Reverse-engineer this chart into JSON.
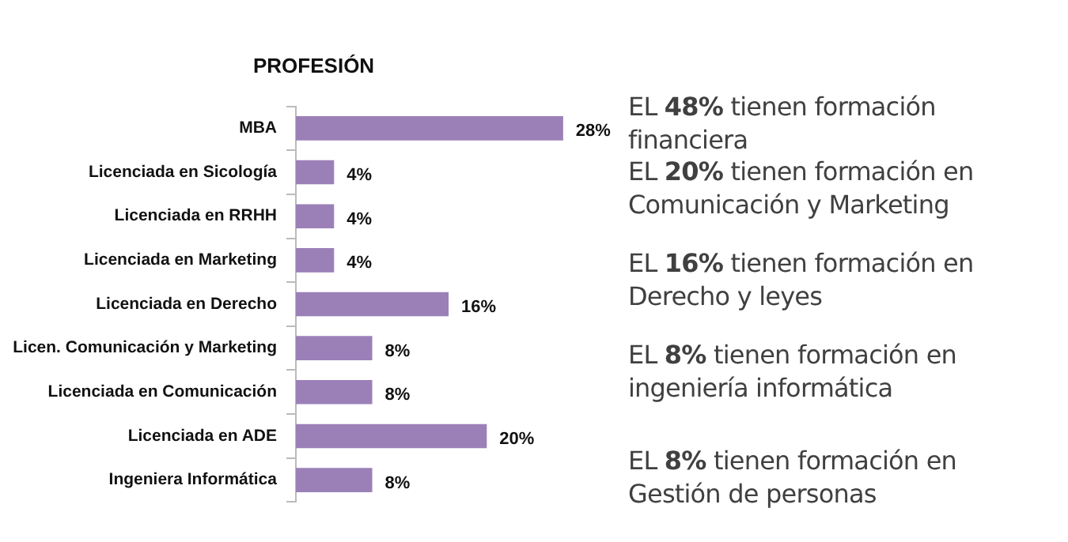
{
  "chart_data": {
    "type": "bar",
    "orientation": "horizontal",
    "title": "PROFESIÓN",
    "categories": [
      "MBA",
      "Licenciada en Sicología",
      "Licenciada en RRHH",
      "Licenciada en Marketing",
      "Licenciada en Derecho",
      "Licen. Comunicación y Marketing",
      "Licenciada en Comunicación",
      "Licenciada en ADE",
      "Ingeniera Informática"
    ],
    "values": [
      28,
      4,
      4,
      4,
      16,
      8,
      8,
      20,
      8
    ],
    "value_labels": [
      "28%",
      "4%",
      "4%",
      "4%",
      "16%",
      "8%",
      "8%",
      "20%",
      "8%"
    ],
    "color": "#9b80b8",
    "annotations": [
      "EL 48% tienen formación financiera",
      "EL 20% tienen formación en Comunicación y Marketing",
      "EL 16% tienen formación en Derecho y leyes",
      "EL 8% tienen formación en ingeniería informática",
      "EL 8% tienen formación en Gestión de personas"
    ]
  }
}
